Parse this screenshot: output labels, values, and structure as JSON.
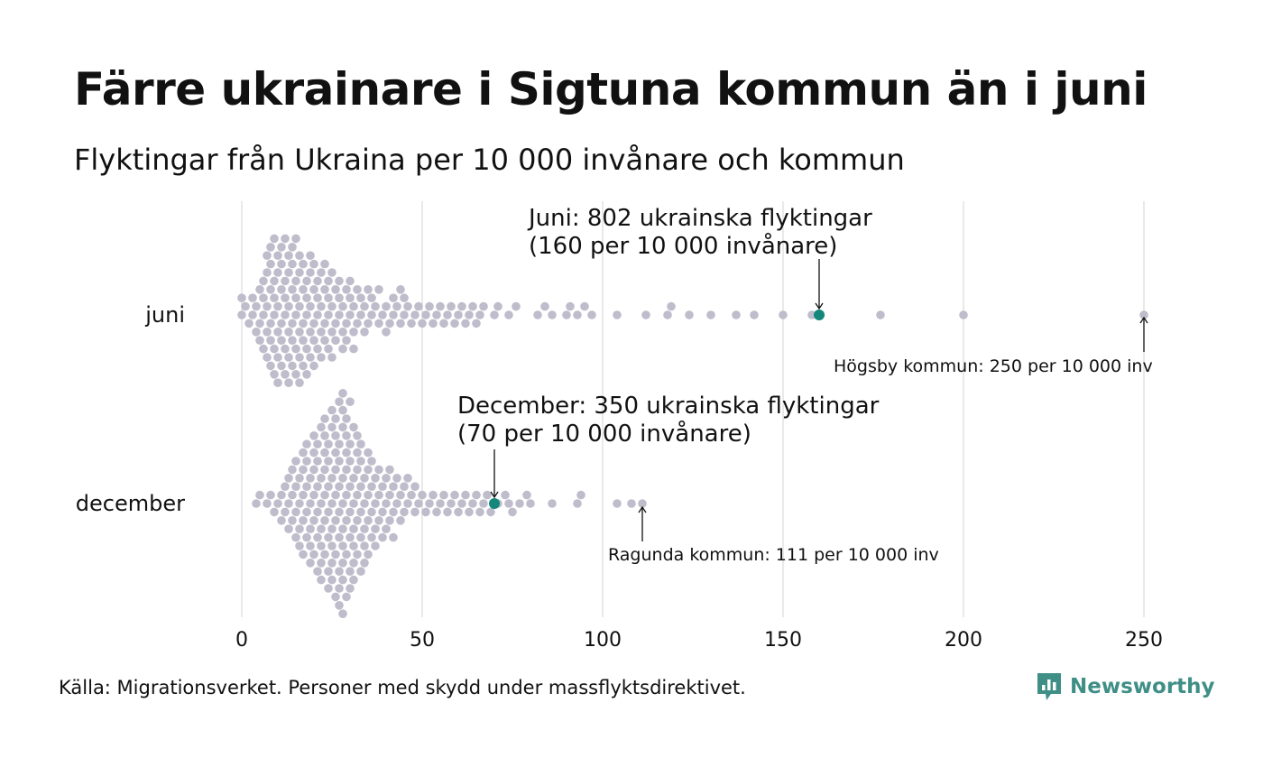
{
  "chart_data": {
    "type": "scatter",
    "subtype": "beeswarm",
    "title": "Färre ukrainare i Sigtuna kommun än i juni",
    "subtitle": "Flyktingar från Ukraina per 10 000 invånare och kommun",
    "xlabel": "",
    "ylabel": "",
    "xlim": [
      0,
      250
    ],
    "x_ticks": [
      0,
      50,
      100,
      150,
      200,
      250
    ],
    "categories": [
      "juni",
      "december"
    ],
    "grid": "vertical",
    "colors": {
      "dots": "#bfbccb",
      "highlight": "#12877a",
      "grid": "#d3d3d3"
    },
    "series": [
      {
        "name": "juni",
        "values": [
          0,
          0,
          1,
          2,
          3,
          3,
          4,
          4,
          5,
          5,
          5,
          6,
          6,
          6,
          6,
          7,
          7,
          7,
          7,
          7,
          8,
          8,
          8,
          8,
          8,
          8,
          9,
          9,
          9,
          9,
          9,
          9,
          10,
          10,
          10,
          10,
          10,
          10,
          11,
          11,
          11,
          11,
          11,
          11,
          12,
          12,
          12,
          12,
          12,
          12,
          13,
          13,
          13,
          13,
          13,
          13,
          14,
          14,
          14,
          14,
          14,
          14,
          15,
          15,
          15,
          15,
          15,
          15,
          16,
          16,
          16,
          16,
          16,
          16,
          17,
          17,
          17,
          17,
          17,
          18,
          18,
          18,
          18,
          18,
          19,
          19,
          19,
          19,
          19,
          20,
          20,
          20,
          20,
          20,
          21,
          21,
          21,
          21,
          22,
          22,
          22,
          22,
          23,
          23,
          23,
          23,
          24,
          24,
          24,
          24,
          25,
          25,
          25,
          25,
          26,
          26,
          26,
          27,
          27,
          27,
          28,
          28,
          28,
          29,
          29,
          29,
          30,
          30,
          30,
          31,
          31,
          31,
          32,
          32,
          33,
          33,
          34,
          34,
          35,
          35,
          36,
          36,
          37,
          38,
          38,
          39,
          40,
          40,
          41,
          42,
          42,
          43,
          44,
          44,
          45,
          45,
          46,
          47,
          48,
          49,
          50,
          51,
          52,
          53,
          54,
          55,
          56,
          57,
          58,
          59,
          60,
          61,
          62,
          63,
          64,
          65,
          66,
          67,
          70,
          71,
          74,
          76,
          82,
          84,
          86,
          90,
          91,
          93,
          95,
          97,
          104,
          112,
          118,
          119,
          124,
          130,
          137,
          142,
          150,
          158,
          177,
          200,
          250
        ],
        "highlight": {
          "label": "Sigtuna kommun",
          "value": 160
        },
        "annotations": [
          {
            "text_lines": [
              "Juni: 802 ukrainska flyktingar",
              "(160 per 10 000 invånare)"
            ],
            "value": 160
          },
          {
            "text_lines": [
              "Högsby kommun: 250 per 10 000 inv"
            ],
            "value": 250
          }
        ]
      },
      {
        "name": "december",
        "values": [
          4,
          5,
          7,
          8,
          9,
          10,
          11,
          11,
          12,
          12,
          13,
          13,
          13,
          14,
          14,
          14,
          15,
          15,
          15,
          15,
          16,
          16,
          16,
          16,
          17,
          17,
          17,
          17,
          17,
          18,
          18,
          18,
          18,
          18,
          19,
          19,
          19,
          19,
          19,
          20,
          20,
          20,
          20,
          20,
          20,
          21,
          21,
          21,
          21,
          21,
          21,
          22,
          22,
          22,
          22,
          22,
          22,
          22,
          23,
          23,
          23,
          23,
          23,
          23,
          23,
          24,
          24,
          24,
          24,
          24,
          24,
          24,
          25,
          25,
          25,
          25,
          25,
          25,
          25,
          25,
          26,
          26,
          26,
          26,
          26,
          26,
          26,
          26,
          27,
          27,
          27,
          27,
          27,
          27,
          27,
          27,
          27,
          28,
          28,
          28,
          28,
          28,
          28,
          28,
          28,
          28,
          28,
          29,
          29,
          29,
          29,
          29,
          29,
          29,
          29,
          30,
          30,
          30,
          30,
          30,
          30,
          30,
          30,
          31,
          31,
          31,
          31,
          31,
          31,
          31,
          32,
          32,
          32,
          32,
          32,
          32,
          33,
          33,
          33,
          33,
          33,
          33,
          34,
          34,
          34,
          34,
          34,
          35,
          35,
          35,
          35,
          35,
          36,
          36,
          36,
          36,
          37,
          37,
          37,
          37,
          38,
          38,
          38,
          39,
          39,
          39,
          40,
          40,
          40,
          41,
          41,
          41,
          42,
          42,
          42,
          43,
          43,
          44,
          44,
          45,
          45,
          46,
          46,
          47,
          48,
          48,
          49,
          50,
          51,
          52,
          53,
          54,
          55,
          56,
          57,
          58,
          59,
          60,
          61,
          62,
          63,
          64,
          65,
          66,
          67,
          68,
          69,
          71,
          73,
          74,
          75,
          77,
          79,
          80,
          86,
          93,
          94,
          104,
          108,
          111
        ],
        "highlight": {
          "label": "Sigtuna kommun",
          "value": 70
        },
        "annotations": [
          {
            "text_lines": [
              "December: 350 ukrainska flyktingar",
              "(70 per 10 000 invånare)"
            ],
            "value": 70
          },
          {
            "text_lines": [
              "Ragunda kommun: 111 per 10 000 inv"
            ],
            "value": 111
          }
        ]
      }
    ],
    "source": "Källa: Migrationsverket. Personer med skydd under massflyktsdirektivet.",
    "brand": "Newsworthy"
  }
}
